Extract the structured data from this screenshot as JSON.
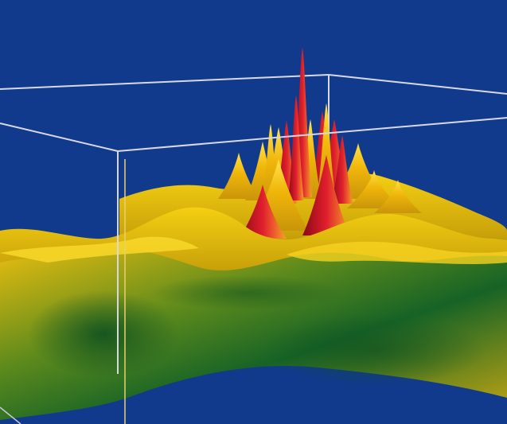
{
  "colors": {
    "background": "#123a8c",
    "box": "#d8d8e0",
    "low": "#0f5a22",
    "mid": "#e0b000",
    "high": "#f2cc10",
    "peak": "#d8192a"
  },
  "chart_data": {
    "type": "surface",
    "title": "",
    "xlabel": "",
    "ylabel": "",
    "zlabel": "",
    "grid": false,
    "legend": "none"
  }
}
